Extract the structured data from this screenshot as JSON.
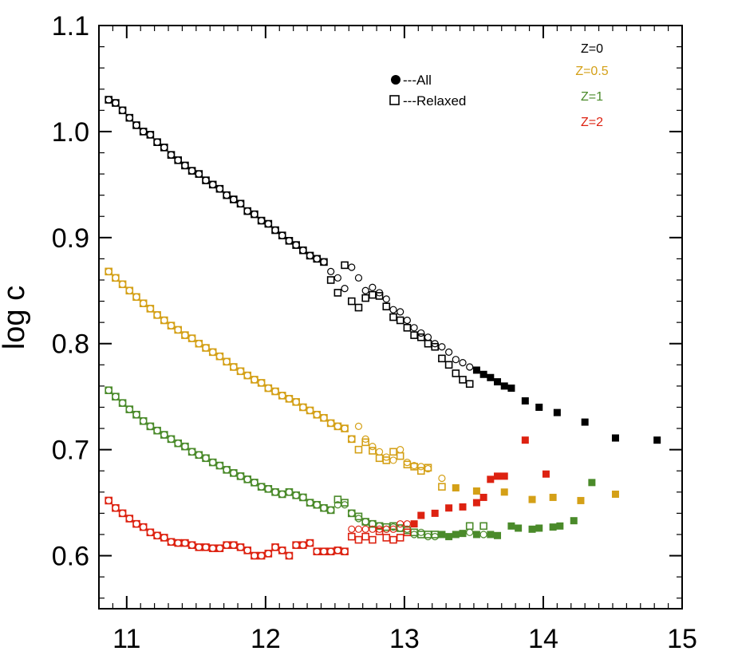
{
  "chart_data": {
    "type": "scatter",
    "ylabel": "log c",
    "xlim": [
      10.8,
      15.0
    ],
    "ylim": [
      0.55,
      1.1
    ],
    "x_ticks": [
      "11",
      "12",
      "13",
      "14",
      "15"
    ],
    "y_ticks": [
      "0.6",
      "0.7",
      "0.8",
      "0.9",
      "1.0",
      "1.1"
    ],
    "legend": {
      "markers": [
        {
          "symbol": "filled-circle",
          "label": "---All"
        },
        {
          "symbol": "open-square",
          "label": "---Relaxed"
        }
      ],
      "redshifts": [
        {
          "label": "Z=0",
          "color": "#000000"
        },
        {
          "label": "Z=0.5",
          "color": "#d4a017"
        },
        {
          "label": "Z=1",
          "color": "#4a8a2a"
        },
        {
          "label": "Z=2",
          "color": "#dd2211"
        }
      ]
    },
    "series": [
      {
        "name": "Z=0",
        "color": "#000000",
        "x": [
          10.87,
          10.92,
          10.97,
          11.02,
          11.07,
          11.12,
          11.17,
          11.22,
          11.27,
          11.32,
          11.37,
          11.42,
          11.47,
          11.52,
          11.57,
          11.62,
          11.67,
          11.72,
          11.77,
          11.82,
          11.87,
          11.92,
          11.97,
          12.02,
          12.07,
          12.12,
          12.17,
          12.22,
          12.27,
          12.32,
          12.37,
          12.42,
          12.47,
          12.52,
          12.57,
          12.62,
          12.67,
          12.72,
          12.77,
          12.82,
          12.87,
          12.92,
          12.97,
          13.02,
          13.07,
          13.12,
          13.17,
          13.22,
          13.27,
          13.32,
          13.37,
          13.42,
          13.47,
          13.52,
          13.57,
          13.62,
          13.67,
          13.72,
          13.77,
          13.87,
          13.97,
          14.1,
          14.3,
          14.52,
          14.82
        ],
        "y_all": [
          1.03,
          1.027,
          1.02,
          1.013,
          1.006,
          1.0,
          0.997,
          0.99,
          0.985,
          0.978,
          0.973,
          0.968,
          0.963,
          0.96,
          0.954,
          0.95,
          0.946,
          0.94,
          0.936,
          0.932,
          0.925,
          0.922,
          0.916,
          0.913,
          0.907,
          0.902,
          0.897,
          0.893,
          0.888,
          0.883,
          0.88,
          0.877,
          0.868,
          0.862,
          0.852,
          0.872,
          0.862,
          0.85,
          0.853,
          0.848,
          0.842,
          0.832,
          0.83,
          0.822,
          0.815,
          0.81,
          0.806,
          0.8,
          0.797,
          0.792,
          0.785,
          0.782,
          0.778,
          0.775,
          0.771,
          0.768,
          0.764,
          0.76,
          0.758,
          0.746,
          0.74,
          0.735,
          0.726,
          0.711,
          0.709
        ],
        "y_relaxed": [
          1.03,
          1.027,
          1.02,
          1.013,
          1.006,
          1.0,
          0.997,
          0.99,
          0.985,
          0.978,
          0.973,
          0.968,
          0.963,
          0.96,
          0.954,
          0.95,
          0.946,
          0.94,
          0.936,
          0.932,
          0.925,
          0.922,
          0.916,
          0.913,
          0.907,
          0.902,
          0.897,
          0.893,
          0.888,
          0.883,
          0.88,
          0.877,
          0.86,
          0.848,
          0.874,
          0.84,
          0.834,
          0.843,
          0.846,
          0.845,
          0.835,
          0.825,
          0.822,
          0.815,
          0.808,
          0.806,
          0.8,
          0.797,
          0.786,
          0.78,
          0.772,
          0.766,
          0.762,
          null,
          null,
          null,
          null,
          null,
          null,
          null,
          null,
          null,
          null,
          null,
          null
        ]
      },
      {
        "name": "Z=0.5",
        "color": "#d4a017",
        "x": [
          10.87,
          10.92,
          10.97,
          11.02,
          11.07,
          11.12,
          11.17,
          11.22,
          11.27,
          11.32,
          11.37,
          11.42,
          11.47,
          11.52,
          11.57,
          11.62,
          11.67,
          11.72,
          11.77,
          11.82,
          11.87,
          11.92,
          11.97,
          12.02,
          12.07,
          12.12,
          12.17,
          12.22,
          12.27,
          12.32,
          12.37,
          12.42,
          12.47,
          12.52,
          12.57,
          12.62,
          12.67,
          12.72,
          12.77,
          12.82,
          12.87,
          12.92,
          12.97,
          13.02,
          13.07,
          13.12,
          13.17,
          13.27,
          13.37,
          13.52,
          13.72,
          13.92,
          14.07,
          14.27,
          14.52
        ],
        "y_all": [
          0.868,
          0.862,
          0.856,
          0.85,
          0.844,
          0.838,
          0.833,
          0.827,
          0.822,
          0.817,
          0.813,
          0.808,
          0.805,
          0.8,
          0.796,
          0.792,
          0.788,
          0.783,
          0.778,
          0.774,
          0.77,
          0.766,
          0.763,
          0.758,
          0.755,
          0.751,
          0.748,
          0.745,
          0.74,
          0.737,
          0.733,
          0.73,
          0.725,
          0.722,
          0.72,
          0.71,
          0.722,
          0.71,
          0.703,
          0.698,
          0.693,
          0.69,
          0.7,
          0.688,
          0.685,
          0.684,
          0.682,
          0.673,
          0.664,
          0.661,
          0.66,
          0.653,
          0.655,
          0.652,
          0.658
        ],
        "y_relaxed": [
          0.868,
          0.862,
          0.856,
          0.85,
          0.844,
          0.838,
          0.833,
          0.827,
          0.822,
          0.817,
          0.813,
          0.808,
          0.805,
          0.8,
          0.796,
          0.792,
          0.788,
          0.783,
          0.778,
          0.774,
          0.77,
          0.766,
          0.763,
          0.758,
          0.755,
          0.751,
          0.748,
          0.745,
          0.74,
          0.737,
          0.733,
          0.73,
          0.725,
          0.722,
          0.72,
          0.71,
          0.7,
          0.707,
          0.699,
          0.692,
          0.69,
          0.698,
          0.694,
          0.686,
          0.684,
          0.68,
          0.683,
          0.665,
          null,
          null,
          null,
          null,
          null,
          null,
          null
        ]
      },
      {
        "name": "Z=1",
        "color": "#4a8a2a",
        "x": [
          10.87,
          10.92,
          10.97,
          11.02,
          11.07,
          11.12,
          11.17,
          11.22,
          11.27,
          11.32,
          11.37,
          11.42,
          11.47,
          11.52,
          11.57,
          11.62,
          11.67,
          11.72,
          11.77,
          11.82,
          11.87,
          11.92,
          11.97,
          12.02,
          12.07,
          12.12,
          12.17,
          12.22,
          12.27,
          12.32,
          12.37,
          12.42,
          12.47,
          12.52,
          12.57,
          12.62,
          12.67,
          12.72,
          12.77,
          12.82,
          12.87,
          12.92,
          12.97,
          13.02,
          13.07,
          13.12,
          13.17,
          13.22,
          13.27,
          13.32,
          13.37,
          13.42,
          13.47,
          13.52,
          13.57,
          13.62,
          13.67,
          13.77,
          13.82,
          13.92,
          13.97,
          14.07,
          14.12,
          14.22,
          14.35
        ],
        "y_all": [
          0.756,
          0.75,
          0.744,
          0.738,
          0.733,
          0.727,
          0.722,
          0.718,
          0.714,
          0.71,
          0.706,
          0.703,
          0.698,
          0.695,
          0.692,
          0.688,
          0.685,
          0.681,
          0.678,
          0.675,
          0.672,
          0.669,
          0.665,
          0.663,
          0.66,
          0.658,
          0.66,
          0.657,
          0.655,
          0.65,
          0.648,
          0.645,
          0.643,
          0.648,
          0.648,
          0.64,
          0.635,
          0.632,
          0.63,
          0.628,
          0.625,
          0.627,
          0.626,
          0.625,
          0.62,
          0.622,
          0.618,
          0.618,
          0.62,
          0.618,
          0.62,
          0.621,
          0.622,
          0.62,
          0.62,
          0.62,
          0.619,
          0.628,
          0.626,
          0.625,
          0.626,
          0.627,
          0.628,
          0.633,
          0.669
        ],
        "y_relaxed": [
          0.756,
          0.75,
          0.744,
          0.738,
          0.733,
          0.727,
          0.722,
          0.718,
          0.714,
          0.71,
          0.706,
          0.703,
          0.698,
          0.695,
          0.692,
          0.688,
          0.685,
          0.681,
          0.678,
          0.675,
          0.672,
          0.669,
          0.665,
          0.663,
          0.66,
          0.658,
          0.66,
          0.657,
          0.655,
          0.65,
          0.648,
          0.645,
          0.643,
          0.653,
          0.65,
          0.64,
          0.637,
          0.632,
          0.63,
          0.628,
          0.627,
          0.628,
          0.626,
          0.624,
          0.622,
          0.62,
          0.62,
          0.62,
          null,
          null,
          null,
          null,
          0.628,
          null,
          0.628,
          null,
          null,
          null,
          null,
          null,
          null,
          null,
          null,
          null,
          null
        ]
      },
      {
        "name": "Z=2",
        "color": "#dd2211",
        "x": [
          10.87,
          10.92,
          10.97,
          11.02,
          11.07,
          11.12,
          11.17,
          11.22,
          11.27,
          11.32,
          11.37,
          11.42,
          11.47,
          11.52,
          11.57,
          11.62,
          11.67,
          11.72,
          11.77,
          11.82,
          11.87,
          11.92,
          11.97,
          12.02,
          12.07,
          12.12,
          12.17,
          12.22,
          12.27,
          12.32,
          12.37,
          12.42,
          12.47,
          12.52,
          12.57,
          12.62,
          12.67,
          12.72,
          12.77,
          12.82,
          12.87,
          12.92,
          12.97,
          13.02,
          13.07,
          13.12,
          13.22,
          13.32,
          13.42,
          13.52,
          13.57,
          13.62,
          13.67,
          13.72,
          13.87,
          14.02
        ],
        "y_all": [
          0.652,
          0.645,
          0.64,
          0.635,
          0.63,
          0.627,
          0.622,
          0.619,
          0.617,
          0.613,
          0.612,
          0.612,
          0.61,
          0.608,
          0.608,
          0.607,
          0.607,
          0.61,
          0.61,
          0.608,
          0.605,
          0.6,
          0.6,
          0.602,
          0.608,
          0.605,
          0.6,
          0.61,
          0.61,
          0.612,
          0.604,
          0.604,
          0.604,
          0.605,
          0.604,
          0.625,
          0.625,
          0.625,
          0.625,
          0.625,
          0.625,
          0.625,
          0.63,
          0.63,
          0.63,
          0.638,
          0.64,
          0.645,
          0.646,
          0.65,
          0.655,
          0.672,
          0.675,
          0.675,
          0.709,
          0.677
        ],
        "y_relaxed": [
          0.652,
          0.645,
          0.64,
          0.635,
          0.63,
          0.627,
          0.622,
          0.619,
          0.617,
          0.613,
          0.612,
          0.612,
          0.61,
          0.608,
          0.608,
          0.607,
          0.607,
          0.61,
          0.61,
          0.608,
          0.605,
          0.6,
          0.6,
          0.602,
          0.608,
          0.605,
          0.6,
          0.61,
          0.61,
          0.612,
          0.604,
          0.604,
          0.604,
          0.605,
          0.604,
          0.618,
          0.615,
          0.618,
          0.615,
          0.623,
          0.617,
          0.615,
          0.617,
          0.622,
          null,
          null,
          null,
          null,
          null,
          null,
          null,
          null,
          null,
          null,
          null,
          null
        ]
      }
    ]
  }
}
